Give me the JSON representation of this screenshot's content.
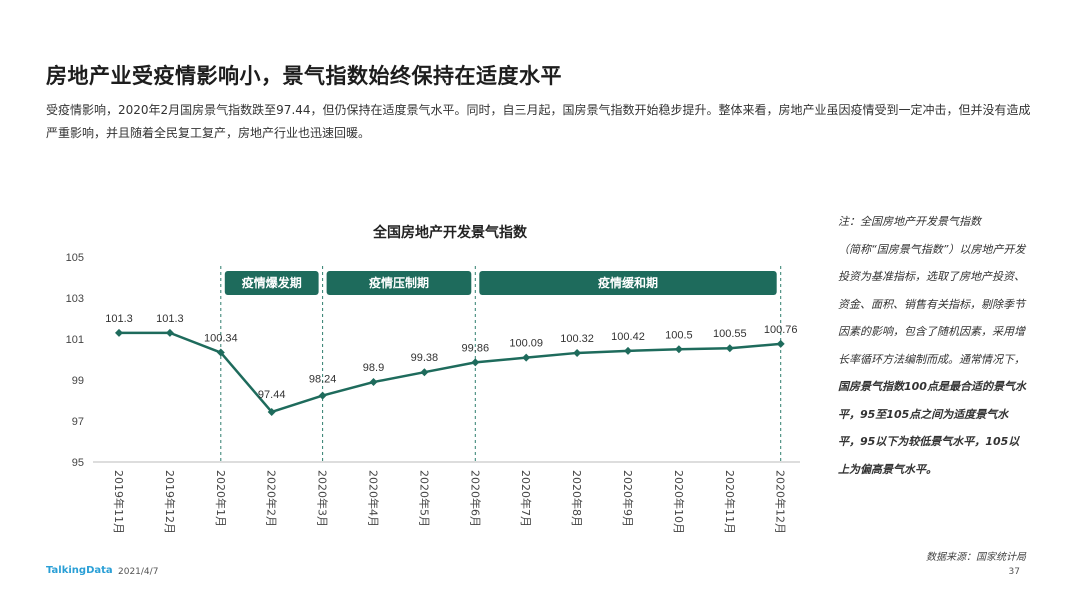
{
  "title": "房地产业受疫情影响小，景气指数始终保持在适度水平",
  "subtitle": "受疫情影响，2020年2月国房景气指数跌至97.44，但仍保持在适度景气水平。同时，自三月起，国房景气指数开始稳步提升。整体来看，房地产业虽因疫情受到一定冲击，但并没有造成严重影响，并且随着全民复工复产，房地产行业也迅速回暖。",
  "note": {
    "line1": "注：全国房地产开发景气指数",
    "line2": "（简称“国房景气指数”）以房地产开发投资为基准指标，选取了房地产投资、资金、面积、销售有关指标，剔除季节因素的影响，包含了随机因素，采用增长率循环方法编制而成。通常情况下，",
    "bold": "国房景气指数100点是最合适的景气水平，95至105点之间为适度景气水平，95以下为较低景气水平，105以上为偏高景气水平。"
  },
  "source": "数据来源：国家统计局",
  "footer": {
    "logo": "TalkingData",
    "date": "2021/4/7",
    "page": "37"
  },
  "colors": {
    "line": "#1e6b5c",
    "phase_bg": "#1e6b5c",
    "phase_text": "#ffffff",
    "divider": "#2f7e6e"
  },
  "chart_data": {
    "type": "line",
    "title": "全国房地产开发景气指数",
    "categories": [
      "2019年11月",
      "2019年12月",
      "2020年1月",
      "2020年2月",
      "2020年3月",
      "2020年4月",
      "2020年5月",
      "2020年6月",
      "2020年7月",
      "2020年8月",
      "2020年9月",
      "2020年10月",
      "2020年11月",
      "2020年12月"
    ],
    "values": [
      101.3,
      101.3,
      100.34,
      97.44,
      98.24,
      98.9,
      99.38,
      99.86,
      100.09,
      100.32,
      100.42,
      100.5,
      100.55,
      100.76
    ],
    "value_labels": [
      "101.3",
      "101.3",
      "100.34",
      "97.44",
      "98.24",
      "98.9",
      "99.38",
      "99.86",
      "100.09",
      "100.32",
      "100.42",
      "100.5",
      "100.55",
      "100.76"
    ],
    "yticks": [
      "95",
      "97",
      "99",
      "101",
      "103",
      "105"
    ],
    "ylim": [
      95,
      105
    ],
    "grid": false,
    "phases": [
      {
        "label": "疫情爆发期",
        "start": 2,
        "end": 4
      },
      {
        "label": "疫情压制期",
        "start": 4,
        "end": 7
      },
      {
        "label": "疫情缓和期",
        "start": 7,
        "end": 13
      }
    ]
  }
}
